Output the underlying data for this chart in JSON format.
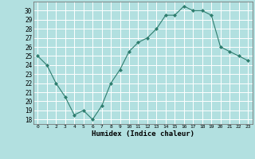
{
  "x": [
    0,
    1,
    2,
    3,
    4,
    5,
    6,
    7,
    8,
    9,
    10,
    11,
    12,
    13,
    14,
    15,
    16,
    17,
    18,
    19,
    20,
    21,
    22,
    23
  ],
  "y": [
    25,
    24,
    22,
    20.5,
    18.5,
    19,
    18,
    19.5,
    22,
    23.5,
    25.5,
    26.5,
    27,
    28,
    29.5,
    29.5,
    30.5,
    30,
    30,
    29.5,
    26,
    25.5,
    25,
    24.5
  ],
  "line_color": "#2e7d6e",
  "marker_color": "#2e7d6e",
  "bg_color": "#b2e0e0",
  "grid_color": "#ffffff",
  "xlabel": "Humidex (Indice chaleur)",
  "ylabel_ticks": [
    18,
    19,
    20,
    21,
    22,
    23,
    24,
    25,
    26,
    27,
    28,
    29,
    30
  ],
  "xlim": [
    -0.5,
    23.5
  ],
  "ylim": [
    17.5,
    31
  ]
}
